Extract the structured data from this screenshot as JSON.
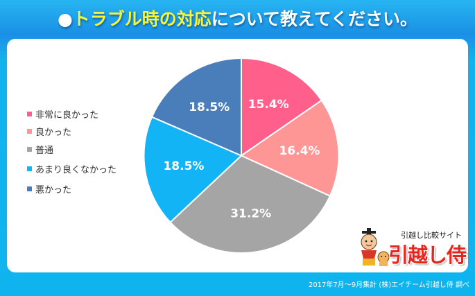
{
  "header": {
    "bullet": "●",
    "title_highlight": "トラブル時の対応",
    "title_rest": "について教えてください。"
  },
  "legend": {
    "items": [
      {
        "label": "非常に良かった",
        "color": "#ff5f8a"
      },
      {
        "label": "良かった",
        "color": "#ff9696"
      },
      {
        "label": "普通",
        "color": "#a5a5a5"
      },
      {
        "label": "あまり良くなかった",
        "color": "#13b4f5"
      },
      {
        "label": "悪かった",
        "color": "#4a7ebb"
      }
    ]
  },
  "logo": {
    "subtitle": "引越し比較サイト",
    "name": "引越し侍"
  },
  "footer": {
    "source": "2017年7月～9月集計 (株)エイチーム引越し侍 調べ"
  },
  "chart_data": {
    "type": "pie",
    "title": "トラブル時の対応について教えてください。",
    "categories": [
      "非常に良かった",
      "良かった",
      "普通",
      "あまり良くなかった",
      "悪かった"
    ],
    "values": [
      15.4,
      16.4,
      31.2,
      18.5,
      18.5
    ],
    "labels": [
      "15.4%",
      "16.4%",
      "31.2%",
      "18.5%",
      "18.5%"
    ],
    "colors": [
      "#ff5f8a",
      "#ff9696",
      "#a5a5a5",
      "#13b4f5",
      "#4a7ebb"
    ],
    "start_angle_deg": 0,
    "direction": "clockwise",
    "legend_position": "left",
    "unit": "%"
  }
}
